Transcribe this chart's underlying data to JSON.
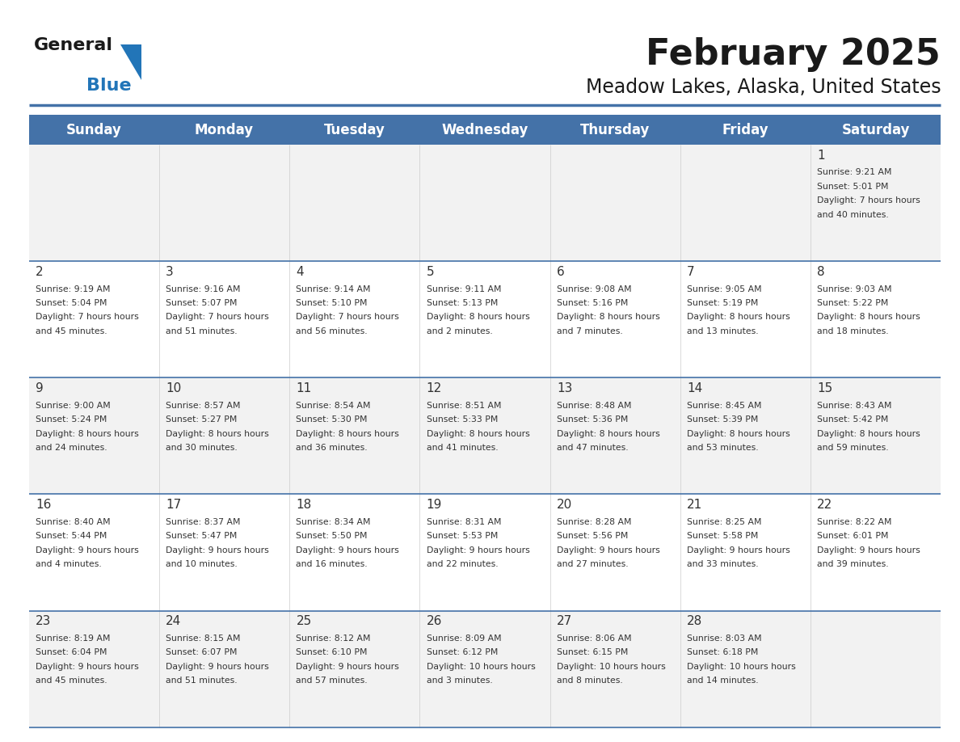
{
  "title": "February 2025",
  "subtitle": "Meadow Lakes, Alaska, United States",
  "header_bg": "#4472a8",
  "header_text": "#ffffff",
  "row_bg_odd": "#f2f2f2",
  "row_bg_even": "#ffffff",
  "day_names": [
    "Sunday",
    "Monday",
    "Tuesday",
    "Wednesday",
    "Thursday",
    "Friday",
    "Saturday"
  ],
  "title_color": "#1a1a1a",
  "subtitle_color": "#1a1a1a",
  "cell_text_color": "#333333",
  "day_num_color": "#333333",
  "divider_color": "#4472a8",
  "calendar": [
    [
      null,
      null,
      null,
      null,
      null,
      null,
      {
        "day": 1,
        "sunrise": "9:21 AM",
        "sunset": "5:01 PM",
        "daylight": "7 hours and 40 minutes"
      }
    ],
    [
      {
        "day": 2,
        "sunrise": "9:19 AM",
        "sunset": "5:04 PM",
        "daylight": "7 hours and 45 minutes"
      },
      {
        "day": 3,
        "sunrise": "9:16 AM",
        "sunset": "5:07 PM",
        "daylight": "7 hours and 51 minutes"
      },
      {
        "day": 4,
        "sunrise": "9:14 AM",
        "sunset": "5:10 PM",
        "daylight": "7 hours and 56 minutes"
      },
      {
        "day": 5,
        "sunrise": "9:11 AM",
        "sunset": "5:13 PM",
        "daylight": "8 hours and 2 minutes"
      },
      {
        "day": 6,
        "sunrise": "9:08 AM",
        "sunset": "5:16 PM",
        "daylight": "8 hours and 7 minutes"
      },
      {
        "day": 7,
        "sunrise": "9:05 AM",
        "sunset": "5:19 PM",
        "daylight": "8 hours and 13 minutes"
      },
      {
        "day": 8,
        "sunrise": "9:03 AM",
        "sunset": "5:22 PM",
        "daylight": "8 hours and 18 minutes"
      }
    ],
    [
      {
        "day": 9,
        "sunrise": "9:00 AM",
        "sunset": "5:24 PM",
        "daylight": "8 hours and 24 minutes"
      },
      {
        "day": 10,
        "sunrise": "8:57 AM",
        "sunset": "5:27 PM",
        "daylight": "8 hours and 30 minutes"
      },
      {
        "day": 11,
        "sunrise": "8:54 AM",
        "sunset": "5:30 PM",
        "daylight": "8 hours and 36 minutes"
      },
      {
        "day": 12,
        "sunrise": "8:51 AM",
        "sunset": "5:33 PM",
        "daylight": "8 hours and 41 minutes"
      },
      {
        "day": 13,
        "sunrise": "8:48 AM",
        "sunset": "5:36 PM",
        "daylight": "8 hours and 47 minutes"
      },
      {
        "day": 14,
        "sunrise": "8:45 AM",
        "sunset": "5:39 PM",
        "daylight": "8 hours and 53 minutes"
      },
      {
        "day": 15,
        "sunrise": "8:43 AM",
        "sunset": "5:42 PM",
        "daylight": "8 hours and 59 minutes"
      }
    ],
    [
      {
        "day": 16,
        "sunrise": "8:40 AM",
        "sunset": "5:44 PM",
        "daylight": "9 hours and 4 minutes"
      },
      {
        "day": 17,
        "sunrise": "8:37 AM",
        "sunset": "5:47 PM",
        "daylight": "9 hours and 10 minutes"
      },
      {
        "day": 18,
        "sunrise": "8:34 AM",
        "sunset": "5:50 PM",
        "daylight": "9 hours and 16 minutes"
      },
      {
        "day": 19,
        "sunrise": "8:31 AM",
        "sunset": "5:53 PM",
        "daylight": "9 hours and 22 minutes"
      },
      {
        "day": 20,
        "sunrise": "8:28 AM",
        "sunset": "5:56 PM",
        "daylight": "9 hours and 27 minutes"
      },
      {
        "day": 21,
        "sunrise": "8:25 AM",
        "sunset": "5:58 PM",
        "daylight": "9 hours and 33 minutes"
      },
      {
        "day": 22,
        "sunrise": "8:22 AM",
        "sunset": "6:01 PM",
        "daylight": "9 hours and 39 minutes"
      }
    ],
    [
      {
        "day": 23,
        "sunrise": "8:19 AM",
        "sunset": "6:04 PM",
        "daylight": "9 hours and 45 minutes"
      },
      {
        "day": 24,
        "sunrise": "8:15 AM",
        "sunset": "6:07 PM",
        "daylight": "9 hours and 51 minutes"
      },
      {
        "day": 25,
        "sunrise": "8:12 AM",
        "sunset": "6:10 PM",
        "daylight": "9 hours and 57 minutes"
      },
      {
        "day": 26,
        "sunrise": "8:09 AM",
        "sunset": "6:12 PM",
        "daylight": "10 hours and 3 minutes"
      },
      {
        "day": 27,
        "sunrise": "8:06 AM",
        "sunset": "6:15 PM",
        "daylight": "10 hours and 8 minutes"
      },
      {
        "day": 28,
        "sunrise": "8:03 AM",
        "sunset": "6:18 PM",
        "daylight": "10 hours and 14 minutes"
      },
      null
    ]
  ]
}
